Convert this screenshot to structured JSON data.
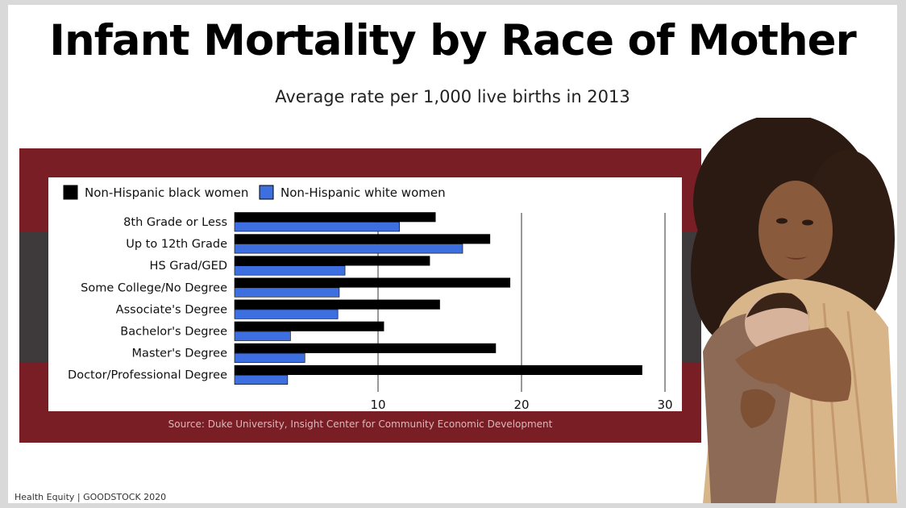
{
  "slide": {
    "title": "Infant Mortality by Race of Mother",
    "subtitle": "Average rate per 1,000 live births in 2013",
    "source": "Source: Duke University, Insight Center for Community Economic Development",
    "footer": "Health Equity | GOODSTOCK 2020",
    "photo": "mother-holding-newborn-photo",
    "colors": {
      "frame": "#7a1e26",
      "band": "#3e3a3c",
      "black_series": "#000000",
      "white_series": "#3d6fe0"
    }
  },
  "chart_data": {
    "type": "bar",
    "orientation": "horizontal",
    "categories": [
      "8th Grade or Less",
      "Up to 12th Grade",
      "HS Grad/GED",
      "Some College/No Degree",
      "Associate's Degree",
      "Bachelor's Degree",
      "Master's Degree",
      "Doctor/Professional Degree"
    ],
    "series": [
      {
        "name": "Non-Hispanic black women",
        "color": "#000000",
        "values": [
          14.0,
          17.8,
          13.6,
          19.2,
          14.3,
          10.4,
          18.2,
          28.4
        ]
      },
      {
        "name": "Non-Hispanic white women",
        "color": "#3d6fe0",
        "values": [
          11.5,
          15.9,
          7.7,
          7.3,
          7.2,
          3.9,
          4.9,
          3.7
        ]
      }
    ],
    "xlim": [
      0,
      30
    ],
    "xticks": [
      10,
      20,
      30
    ],
    "grid": true,
    "legend": "top-left"
  }
}
